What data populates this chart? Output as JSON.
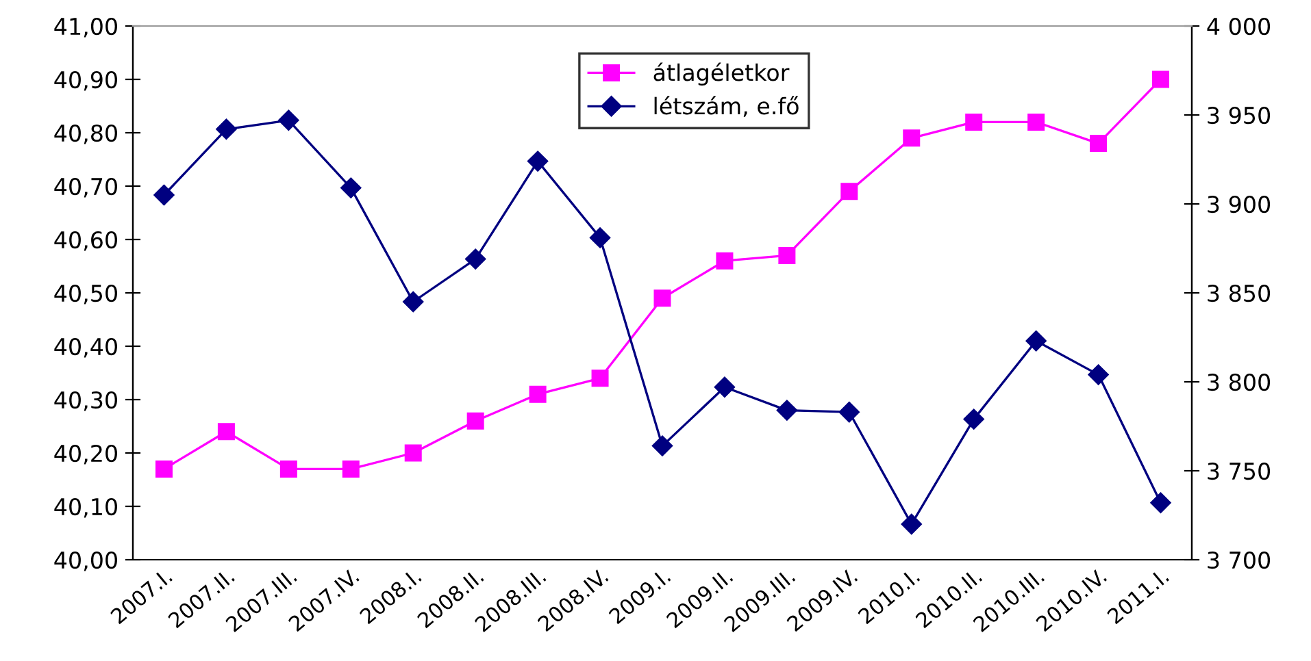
{
  "chart_data": {
    "type": "line",
    "categories": [
      "2007.I.",
      "2007.II.",
      "2007.III.",
      "2007.IV.",
      "2008.I.",
      "2008.II.",
      "2008.III.",
      "2008.IV.",
      "2009.I.",
      "2009.II.",
      "2009.III.",
      "2009.IV.",
      "2010.I.",
      "2010.II.",
      "2010.III.",
      "2010.IV.",
      "2011.I."
    ],
    "series": [
      {
        "name": "átlagéletkor",
        "color": "#ff00ff",
        "marker": "square",
        "values": [
          40.17,
          40.24,
          40.17,
          40.17,
          40.2,
          40.26,
          40.31,
          40.34,
          40.49,
          40.56,
          40.57,
          40.69,
          40.79,
          40.82,
          40.82,
          40.78,
          40.9
        ]
      },
      {
        "name": "létszám, e.fő",
        "color": "#000080",
        "marker": "diamond",
        "axis": "y2",
        "values": [
          3905,
          3942,
          3947,
          3909,
          3845,
          3869,
          3924,
          3881,
          3764,
          3797,
          3784,
          3783,
          3720,
          3779,
          3823,
          3804,
          3732
        ]
      }
    ],
    "ylim": [
      40.0,
      41.0
    ],
    "yticks": [
      {
        "value": 40.0,
        "label": "40,00"
      },
      {
        "value": 40.1,
        "label": "40,10"
      },
      {
        "value": 40.2,
        "label": "40,20"
      },
      {
        "value": 40.3,
        "label": "40,30"
      },
      {
        "value": 40.4,
        "label": "40,40"
      },
      {
        "value": 40.5,
        "label": "40,50"
      },
      {
        "value": 40.6,
        "label": "40,60"
      },
      {
        "value": 40.7,
        "label": "40,70"
      },
      {
        "value": 40.8,
        "label": "40,80"
      },
      {
        "value": 40.9,
        "label": "40,90"
      },
      {
        "value": 41.0,
        "label": "41,00"
      }
    ],
    "y2lim": [
      3700,
      4000
    ],
    "y2ticks": [
      {
        "value": 3700,
        "label": "3 700"
      },
      {
        "value": 3750,
        "label": "3 750"
      },
      {
        "value": 3800,
        "label": "3 800"
      },
      {
        "value": 3850,
        "label": "3 850"
      },
      {
        "value": 3900,
        "label": "3 900"
      },
      {
        "value": 3950,
        "label": "3 950"
      },
      {
        "value": 4000,
        "label": "4 000"
      }
    ],
    "grid": false,
    "legend": "top",
    "line_style": "solid"
  }
}
